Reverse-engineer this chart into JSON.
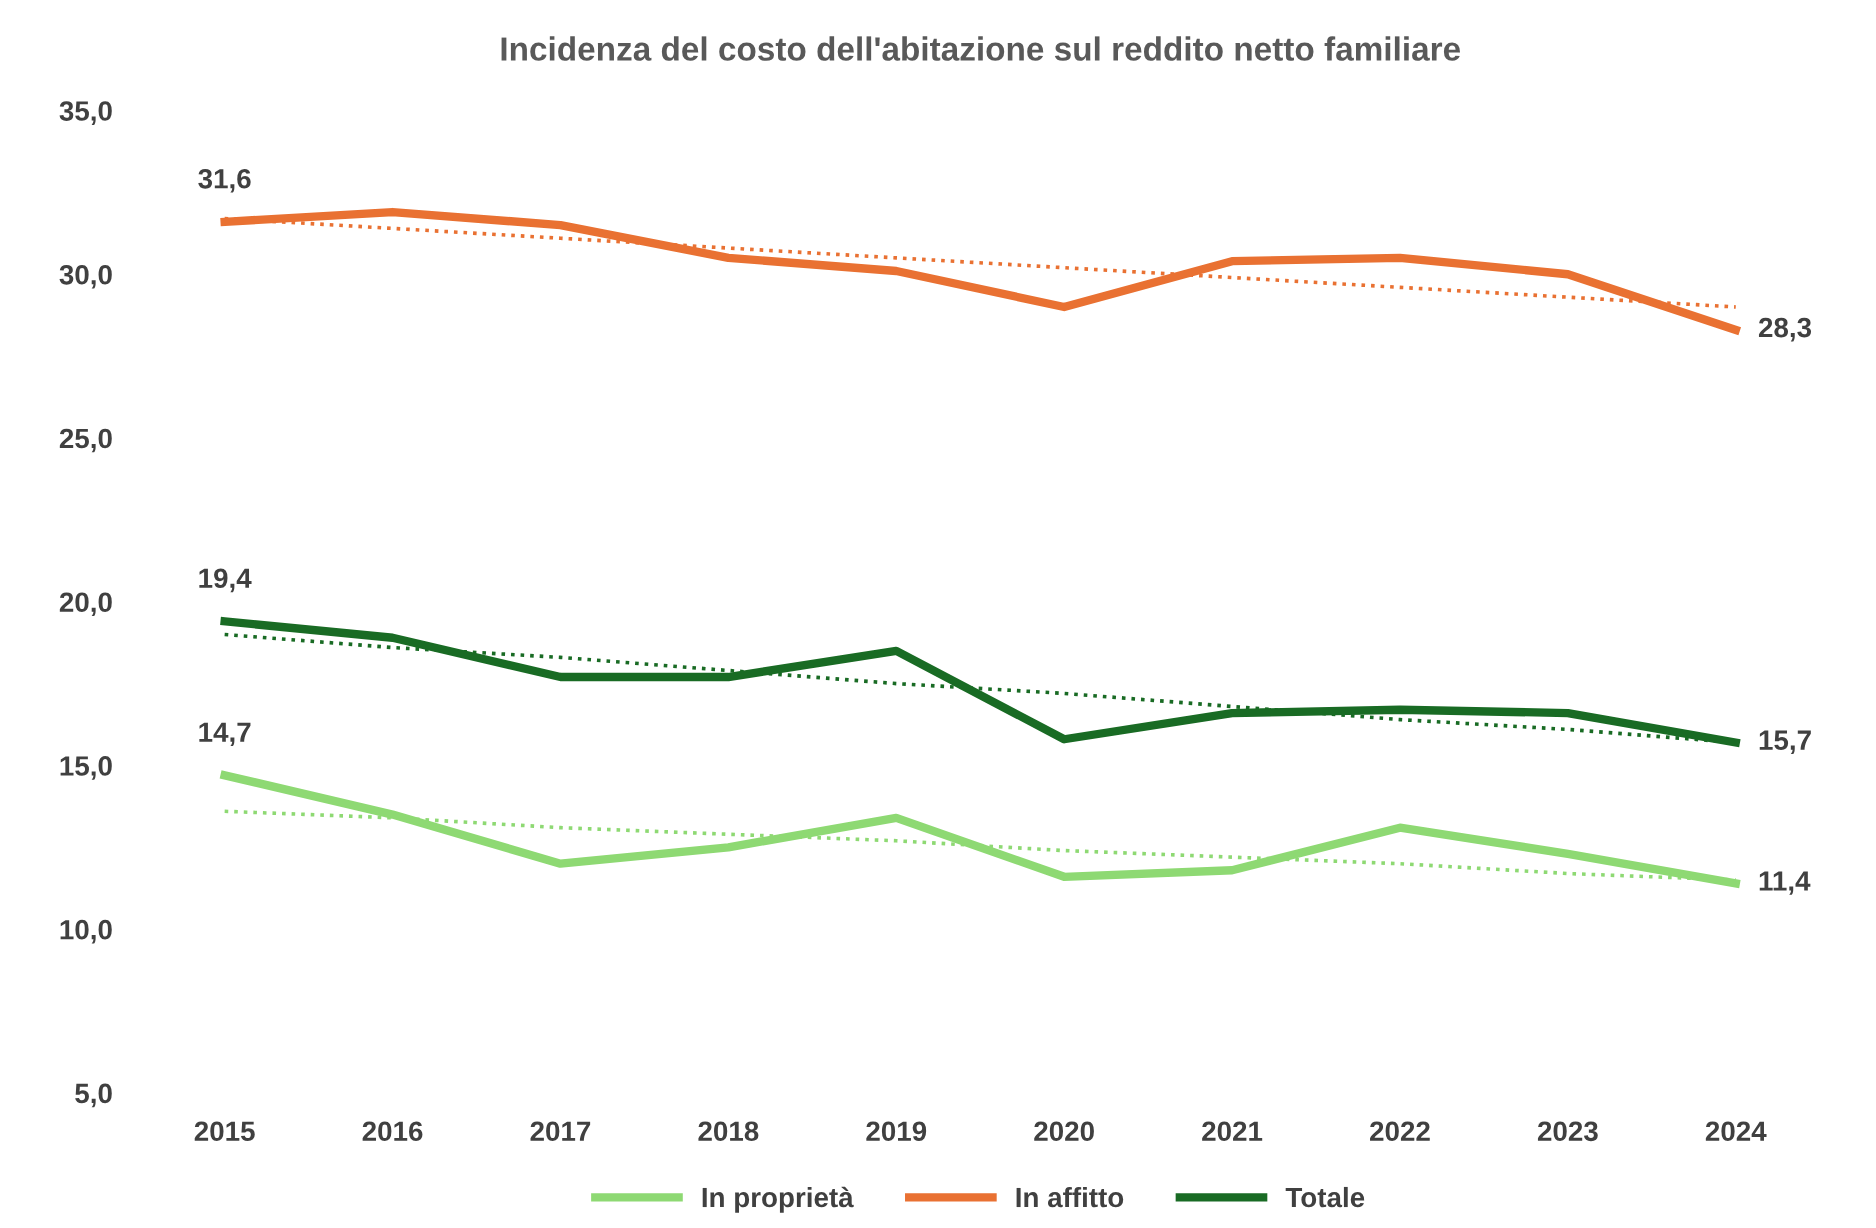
{
  "chart_data": {
    "type": "line",
    "title": "Incidenza del costo dell'abitazione sul reddito netto familiare",
    "categories": [
      "2015",
      "2016",
      "2017",
      "2018",
      "2019",
      "2020",
      "2021",
      "2022",
      "2023",
      "2024"
    ],
    "series": [
      {
        "name": "In proprietà",
        "color": "#8ed973",
        "values": [
          14.7,
          13.5,
          12.0,
          12.5,
          13.4,
          11.6,
          11.8,
          13.1,
          12.3,
          11.4
        ],
        "value_labels": [
          "14,7",
          null,
          null,
          null,
          null,
          null,
          null,
          null,
          null,
          "11,4"
        ]
      },
      {
        "name": "In affitto",
        "color": "#e97132",
        "values": [
          31.6,
          31.9,
          31.5,
          30.5,
          30.1,
          29.0,
          30.4,
          30.5,
          30.0,
          28.3
        ],
        "value_labels": [
          "31,6",
          null,
          null,
          null,
          null,
          null,
          null,
          null,
          null,
          "28,3"
        ]
      },
      {
        "name": "Totale",
        "color": "#196b24",
        "values": [
          19.4,
          18.9,
          17.7,
          17.7,
          18.5,
          15.8,
          16.6,
          16.7,
          16.6,
          15.7
        ],
        "value_labels": [
          "19,4",
          null,
          null,
          null,
          null,
          null,
          null,
          null,
          null,
          "15,7"
        ]
      },
      {
        "type": "line",
        "line_style": "dotted",
        "color": "#8ed973",
        "values": [
          13.6,
          13.4,
          13.1,
          12.9,
          12.7,
          12.4,
          12.2,
          12.0,
          11.7,
          11.5
        ]
      },
      {
        "type": "line",
        "line_style": "dotted",
        "color": "#e97132",
        "values": [
          31.7,
          31.4,
          31.1,
          30.8,
          30.5,
          30.2,
          29.9,
          29.6,
          29.3,
          29.0
        ]
      },
      {
        "type": "line",
        "line_style": "dotted",
        "color": "#196b24",
        "values": [
          19.0,
          18.6,
          18.3,
          17.9,
          17.5,
          17.2,
          16.8,
          16.4,
          16.1,
          15.7
        ]
      }
    ],
    "ylim": [
      5,
      35
    ],
    "yticks": [
      {
        "value": 5,
        "label": "5,0"
      },
      {
        "value": 10,
        "label": "10,0"
      },
      {
        "value": 15,
        "label": "15,0"
      },
      {
        "value": 20,
        "label": "20,0"
      },
      {
        "value": 25,
        "label": "25,0"
      },
      {
        "value": 30,
        "label": "30,0"
      },
      {
        "value": 35,
        "label": "35,0"
      }
    ],
    "grid": false,
    "legend": "bottom",
    "line_style": "solid",
    "marker": "none"
  }
}
